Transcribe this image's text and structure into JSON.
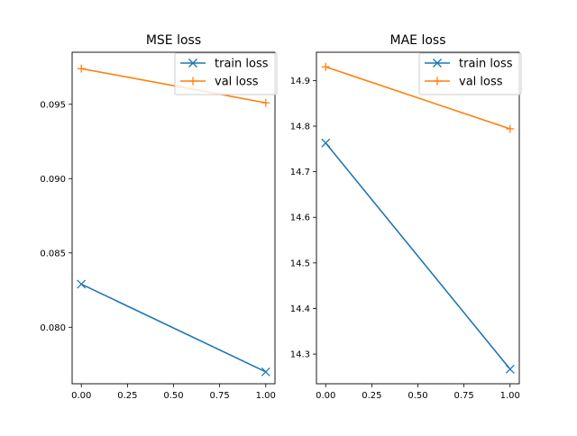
{
  "chart_data": [
    {
      "type": "line",
      "title": "MSE loss",
      "xlabel": "",
      "ylabel": "",
      "x": [
        0,
        1
      ],
      "xlim": [
        -0.05,
        1.05
      ],
      "ylim": [
        0.0762,
        0.0985
      ],
      "xticks": [
        0.0,
        0.25,
        0.5,
        0.75,
        1.0
      ],
      "xtick_labels": [
        "0.00",
        "0.25",
        "0.50",
        "0.75",
        "1.00"
      ],
      "yticks": [
        0.08,
        0.085,
        0.09,
        0.095
      ],
      "ytick_labels": [
        "0.080",
        "0.085",
        "0.090",
        "0.095"
      ],
      "grid": false,
      "legend_position": "top-right",
      "series": [
        {
          "name": "train loss",
          "values": [
            0.0829,
            0.077
          ],
          "color": "#1f77b4",
          "marker": "x"
        },
        {
          "name": "val loss",
          "values": [
            0.0974,
            0.0951
          ],
          "color": "#ff7f0e",
          "marker": "+"
        }
      ]
    },
    {
      "type": "line",
      "title": "MAE loss",
      "xlabel": "",
      "ylabel": "",
      "x": [
        0,
        1
      ],
      "xlim": [
        -0.05,
        1.05
      ],
      "ylim": [
        14.235,
        14.962
      ],
      "xticks": [
        0.0,
        0.25,
        0.5,
        0.75,
        1.0
      ],
      "xtick_labels": [
        "0.00",
        "0.25",
        "0.50",
        "0.75",
        "1.00"
      ],
      "yticks": [
        14.3,
        14.4,
        14.5,
        14.6,
        14.7,
        14.8,
        14.9
      ],
      "ytick_labels": [
        "14.3",
        "14.4",
        "14.5",
        "14.6",
        "14.7",
        "14.8",
        "14.9"
      ],
      "grid": false,
      "legend_position": "top-right",
      "series": [
        {
          "name": "train loss",
          "values": [
            14.763,
            14.267
          ],
          "color": "#1f77b4",
          "marker": "x"
        },
        {
          "name": "val loss",
          "values": [
            14.93,
            14.794
          ],
          "color": "#ff7f0e",
          "marker": "+"
        }
      ]
    }
  ]
}
